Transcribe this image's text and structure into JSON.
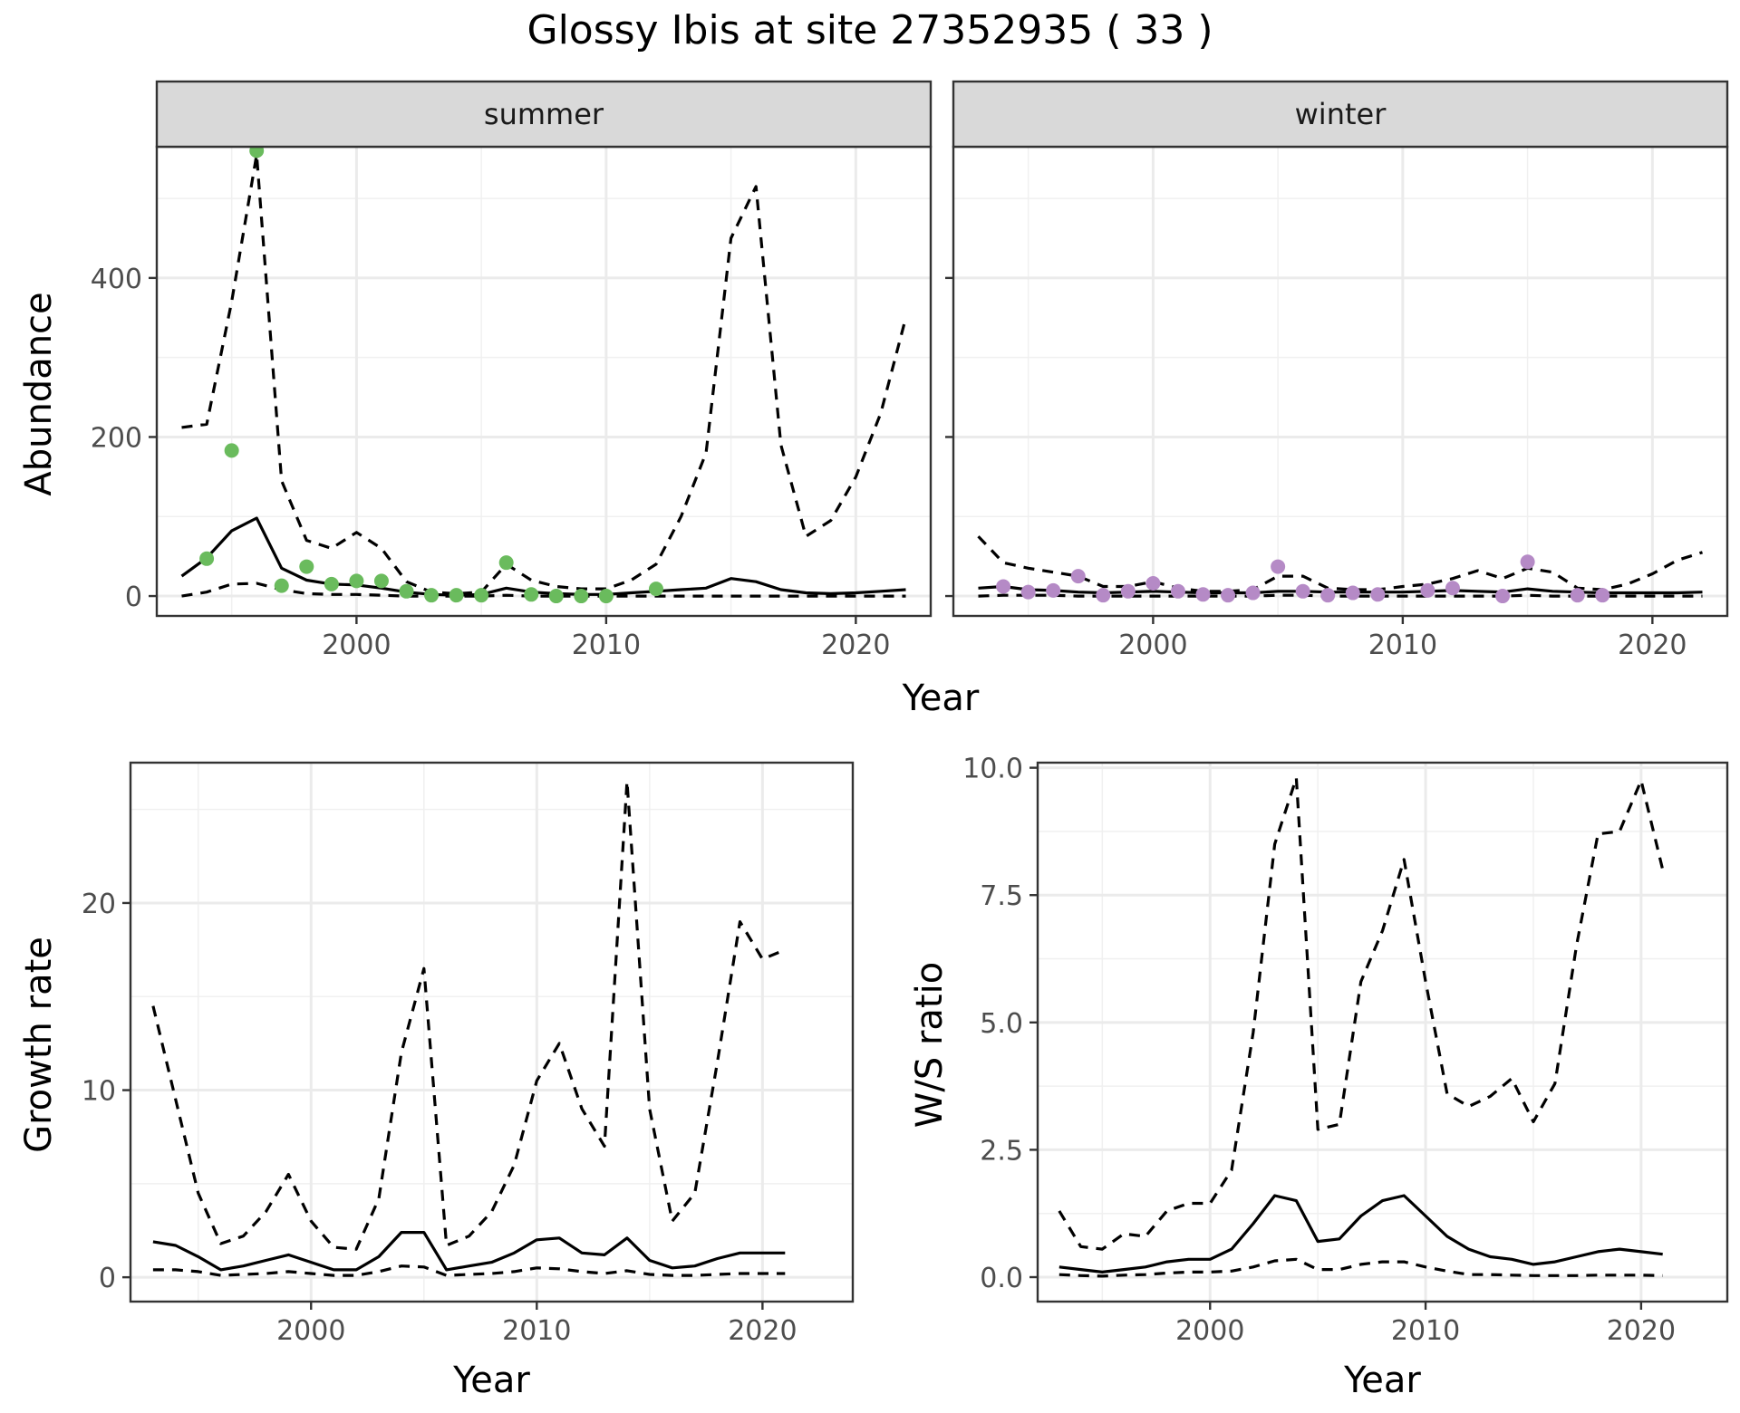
{
  "title": "Glossy Ibis at site 27352935 ( 33 )",
  "chart_data": [
    {
      "type": "line",
      "panel": "summer",
      "strip_label": "summer",
      "xlabel": "Year",
      "ylabel": "Abundance",
      "xlim": [
        1992,
        2023
      ],
      "ylim": [
        -25,
        565
      ],
      "x_ticks": [
        2000,
        2010,
        2020
      ],
      "y_ticks": [
        0,
        200,
        400
      ],
      "grid": true,
      "shared_xlabel": "Year",
      "series": [
        {
          "role": "median",
          "style": "solid",
          "x": [
            1993,
            1994,
            1995,
            1996,
            1997,
            1998,
            1999,
            2000,
            2001,
            2002,
            2003,
            2004,
            2005,
            2006,
            2007,
            2008,
            2009,
            2010,
            2011,
            2012,
            2013,
            2014,
            2015,
            2016,
            2017,
            2018,
            2019,
            2020,
            2021,
            2022
          ],
          "y": [
            25,
            48,
            82,
            98,
            35,
            20,
            15,
            14,
            10,
            5,
            2,
            1,
            2,
            10,
            5,
            3,
            2,
            2,
            4,
            6,
            8,
            10,
            22,
            18,
            8,
            4,
            3,
            4,
            6,
            8
          ]
        },
        {
          "role": "upper",
          "style": "dashed",
          "x": [
            1993,
            1994,
            1995,
            1996,
            1997,
            1998,
            1999,
            2000,
            2001,
            2002,
            2003,
            2004,
            2005,
            2006,
            2007,
            2008,
            2009,
            2010,
            2011,
            2012,
            2013,
            2014,
            2015,
            2016,
            2017,
            2018,
            2019,
            2020,
            2021,
            2022
          ],
          "y": [
            212,
            216,
            370,
            555,
            145,
            70,
            60,
            80,
            60,
            18,
            5,
            3,
            5,
            40,
            20,
            12,
            9,
            9,
            20,
            40,
            100,
            180,
            450,
            515,
            190,
            75,
            95,
            150,
            230,
            350
          ]
        },
        {
          "role": "lower",
          "style": "dashed",
          "x": [
            1993,
            1994,
            1995,
            1996,
            1997,
            1998,
            1999,
            2000,
            2001,
            2002,
            2003,
            2004,
            2005,
            2006,
            2007,
            2008,
            2009,
            2010,
            2011,
            2012,
            2013,
            2014,
            2015,
            2016,
            2017,
            2018,
            2019,
            2020,
            2021,
            2022
          ],
          "y": [
            0,
            5,
            15,
            16,
            8,
            3,
            2,
            2,
            1,
            0,
            0,
            0,
            0,
            1,
            0,
            0,
            0,
            0,
            0,
            0,
            0,
            0,
            0,
            0,
            0,
            0,
            0,
            0,
            0,
            0
          ]
        },
        {
          "role": "observed",
          "style": "points",
          "color": "#6abb5d",
          "x": [
            1994,
            1995,
            1996,
            1997,
            1998,
            1999,
            2000,
            2001,
            2002,
            2003,
            2004,
            2005,
            2006,
            2007,
            2008,
            2009,
            2010,
            2012
          ],
          "y": [
            47,
            183,
            560,
            13,
            37,
            15,
            19,
            19,
            6,
            1,
            1,
            1,
            42,
            2,
            0,
            0,
            0,
            9
          ]
        }
      ]
    },
    {
      "type": "line",
      "panel": "winter",
      "strip_label": "winter",
      "xlabel": "Year",
      "ylabel": "",
      "xlim": [
        1992,
        2023
      ],
      "ylim": [
        -25,
        565
      ],
      "x_ticks": [
        2000,
        2010,
        2020
      ],
      "y_ticks": [
        0,
        200,
        400
      ],
      "grid": true,
      "series": [
        {
          "role": "median",
          "style": "solid",
          "x": [
            1993,
            1994,
            1995,
            1996,
            1997,
            1998,
            1999,
            2000,
            2001,
            2002,
            2003,
            2004,
            2005,
            2006,
            2007,
            2008,
            2009,
            2010,
            2011,
            2012,
            2013,
            2014,
            2015,
            2016,
            2017,
            2018,
            2019,
            2020,
            2021,
            2022
          ],
          "y": [
            10,
            12,
            8,
            7,
            5,
            4,
            5,
            6,
            5,
            4,
            4,
            4,
            6,
            6,
            5,
            5,
            5,
            5,
            6,
            7,
            6,
            5,
            9,
            6,
            5,
            4,
            4,
            4,
            4,
            5
          ]
        },
        {
          "role": "upper",
          "style": "dashed",
          "x": [
            1993,
            1994,
            1995,
            1996,
            1997,
            1998,
            1999,
            2000,
            2001,
            2002,
            2003,
            2004,
            2005,
            2006,
            2007,
            2008,
            2009,
            2010,
            2011,
            2012,
            2013,
            2014,
            2015,
            2016,
            2017,
            2018,
            2019,
            2020,
            2021,
            2022
          ],
          "y": [
            75,
            42,
            35,
            30,
            25,
            12,
            12,
            18,
            10,
            6,
            6,
            8,
            25,
            25,
            10,
            8,
            8,
            12,
            15,
            22,
            32,
            22,
            35,
            30,
            10,
            8,
            15,
            28,
            45,
            55
          ]
        },
        {
          "role": "lower",
          "style": "dashed",
          "x": [
            1993,
            1994,
            1995,
            1996,
            1997,
            1998,
            1999,
            2000,
            2001,
            2002,
            2003,
            2004,
            2005,
            2006,
            2007,
            2008,
            2009,
            2010,
            2011,
            2012,
            2013,
            2014,
            2015,
            2016,
            2017,
            2018,
            2019,
            2020,
            2021,
            2022
          ],
          "y": [
            0,
            1,
            1,
            1,
            0,
            0,
            0,
            0,
            0,
            0,
            0,
            0,
            1,
            1,
            0,
            0,
            0,
            0,
            0,
            0,
            0,
            0,
            1,
            0,
            0,
            0,
            0,
            0,
            0,
            0
          ]
        },
        {
          "role": "observed",
          "style": "points",
          "color": "#b58ac6",
          "x": [
            1994,
            1995,
            1996,
            1997,
            1998,
            1999,
            2000,
            2001,
            2002,
            2003,
            2004,
            2005,
            2006,
            2007,
            2008,
            2009,
            2011,
            2012,
            2014,
            2015,
            2017,
            2018
          ],
          "y": [
            12,
            5,
            7,
            25,
            1,
            6,
            16,
            6,
            2,
            1,
            4,
            37,
            6,
            1,
            4,
            2,
            7,
            10,
            0,
            43,
            1,
            1
          ]
        }
      ]
    },
    {
      "type": "line",
      "panel": "growth",
      "xlabel": "Year",
      "ylabel": "Growth rate",
      "xlim": [
        1992,
        2024
      ],
      "ylim": [
        -1.3,
        27.5
      ],
      "x_ticks": [
        2000,
        2010,
        2020
      ],
      "y_ticks": [
        0,
        10,
        20
      ],
      "grid": true,
      "series": [
        {
          "role": "median",
          "style": "solid",
          "x": [
            1993,
            1994,
            1995,
            1996,
            1997,
            1998,
            1999,
            2000,
            2001,
            2002,
            2003,
            2004,
            2005,
            2006,
            2007,
            2008,
            2009,
            2010,
            2011,
            2012,
            2013,
            2014,
            2015,
            2016,
            2017,
            2018,
            2019,
            2020,
            2021
          ],
          "y": [
            1.9,
            1.7,
            1.1,
            0.4,
            0.6,
            0.9,
            1.2,
            0.8,
            0.4,
            0.4,
            1.1,
            2.4,
            2.4,
            0.4,
            0.6,
            0.8,
            1.3,
            2.0,
            2.1,
            1.3,
            1.2,
            2.1,
            0.9,
            0.5,
            0.6,
            1.0,
            1.3,
            1.3,
            1.3
          ]
        },
        {
          "role": "upper",
          "style": "dashed",
          "x": [
            1993,
            1994,
            1995,
            1996,
            1997,
            1998,
            1999,
            2000,
            2001,
            2002,
            2003,
            2004,
            2005,
            2006,
            2007,
            2008,
            2009,
            2010,
            2011,
            2012,
            2013,
            2014,
            2015,
            2016,
            2017,
            2018,
            2019,
            2020,
            2021
          ],
          "y": [
            14.5,
            9.5,
            4.5,
            1.8,
            2.2,
            3.5,
            5.5,
            3.0,
            1.6,
            1.5,
            4.2,
            12.0,
            16.5,
            1.7,
            2.2,
            3.5,
            6.0,
            10.5,
            12.5,
            9.0,
            7.0,
            26.5,
            9.0,
            3.0,
            4.5,
            11.5,
            19.0,
            17.0,
            17.5
          ]
        },
        {
          "role": "lower",
          "style": "dashed",
          "x": [
            1993,
            1994,
            1995,
            1996,
            1997,
            1998,
            1999,
            2000,
            2001,
            2002,
            2003,
            2004,
            2005,
            2006,
            2007,
            2008,
            2009,
            2010,
            2011,
            2012,
            2013,
            2014,
            2015,
            2016,
            2017,
            2018,
            2019,
            2020,
            2021
          ],
          "y": [
            0.4,
            0.4,
            0.3,
            0.1,
            0.15,
            0.2,
            0.3,
            0.2,
            0.1,
            0.1,
            0.3,
            0.6,
            0.55,
            0.1,
            0.15,
            0.2,
            0.3,
            0.5,
            0.45,
            0.3,
            0.2,
            0.35,
            0.15,
            0.1,
            0.1,
            0.15,
            0.2,
            0.2,
            0.2
          ]
        }
      ]
    },
    {
      "type": "line",
      "panel": "ratio",
      "xlabel": "Year",
      "ylabel": "W/S ratio",
      "xlim": [
        1992,
        2024
      ],
      "ylim": [
        -0.48,
        10.1
      ],
      "x_ticks": [
        2000,
        2010,
        2020
      ],
      "y_ticks": [
        "0.0",
        "2.5",
        "5.0",
        "7.5",
        "10.0"
      ],
      "grid": true,
      "series": [
        {
          "role": "median",
          "style": "solid",
          "x": [
            1993,
            1994,
            1995,
            1996,
            1997,
            1998,
            1999,
            2000,
            2001,
            2002,
            2003,
            2004,
            2005,
            2006,
            2007,
            2008,
            2009,
            2010,
            2011,
            2012,
            2013,
            2014,
            2015,
            2016,
            2017,
            2018,
            2019,
            2020,
            2021
          ],
          "y": [
            0.2,
            0.15,
            0.1,
            0.15,
            0.2,
            0.3,
            0.35,
            0.35,
            0.55,
            1.05,
            1.6,
            1.5,
            0.7,
            0.75,
            1.2,
            1.5,
            1.6,
            1.2,
            0.8,
            0.55,
            0.4,
            0.35,
            0.25,
            0.3,
            0.4,
            0.5,
            0.55,
            0.5,
            0.45
          ]
        },
        {
          "role": "upper",
          "style": "dashed",
          "x": [
            1993,
            1994,
            1995,
            1996,
            1997,
            1998,
            1999,
            2000,
            2001,
            2002,
            2003,
            2004,
            2005,
            2006,
            2007,
            2008,
            2009,
            2010,
            2011,
            2012,
            2013,
            2014,
            2015,
            2016,
            2017,
            2018,
            2019,
            2020,
            2021
          ],
          "y": [
            1.3,
            0.6,
            0.55,
            0.85,
            0.8,
            1.3,
            1.45,
            1.45,
            2.1,
            4.8,
            8.5,
            9.8,
            2.9,
            3.0,
            5.8,
            6.8,
            8.2,
            5.8,
            3.6,
            3.35,
            3.55,
            3.9,
            3.05,
            3.8,
            6.5,
            8.7,
            8.75,
            9.75,
            8.0
          ]
        },
        {
          "role": "lower",
          "style": "dashed",
          "x": [
            1993,
            1994,
            1995,
            1996,
            1997,
            1998,
            1999,
            2000,
            2001,
            2002,
            2003,
            2004,
            2005,
            2006,
            2007,
            2008,
            2009,
            2010,
            2011,
            2012,
            2013,
            2014,
            2015,
            2016,
            2017,
            2018,
            2019,
            2020,
            2021
          ],
          "y": [
            0.05,
            0.03,
            0.02,
            0.04,
            0.05,
            0.08,
            0.1,
            0.1,
            0.12,
            0.2,
            0.32,
            0.35,
            0.15,
            0.15,
            0.25,
            0.3,
            0.3,
            0.2,
            0.12,
            0.05,
            0.05,
            0.04,
            0.03,
            0.03,
            0.03,
            0.04,
            0.04,
            0.04,
            0.03
          ]
        }
      ]
    }
  ]
}
